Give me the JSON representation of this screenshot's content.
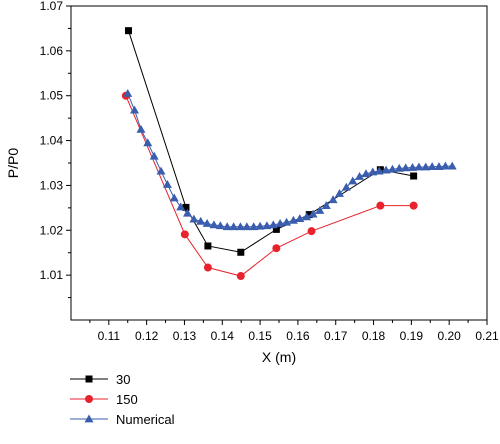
{
  "chart_data": {
    "type": "line",
    "xlabel": "X (m)",
    "ylabel": "P/P0",
    "xlim": [
      0.1,
      0.21
    ],
    "ylim": [
      1.0,
      1.07
    ],
    "x_ticks": [
      "0.11",
      "0.12",
      "0.13",
      "0.14",
      "0.15",
      "0.16",
      "0.17",
      "0.18",
      "0.19",
      "0.20",
      "0.21"
    ],
    "y_ticks": [
      "1.01",
      "1.02",
      "1.03",
      "1.04",
      "1.05",
      "1.06",
      "1.07"
    ],
    "legend_position": "bottom-left",
    "grid": false,
    "series": [
      {
        "name": "30",
        "color": "#000000",
        "marker": "square",
        "x": [
          0.1152,
          0.1304,
          0.1362,
          0.1449,
          0.1543,
          0.163,
          0.1818,
          0.1906
        ],
        "y": [
          1.0645,
          1.0251,
          1.0165,
          1.0151,
          1.0202,
          1.0235,
          1.0335,
          1.0321
        ]
      },
      {
        "name": "150",
        "color": "#e8232d",
        "marker": "circle",
        "x": [
          0.1145,
          0.1301,
          0.1362,
          0.1449,
          0.1543,
          0.1636,
          0.1818,
          0.1906
        ],
        "y": [
          1.05,
          1.0191,
          1.0117,
          1.0098,
          1.016,
          1.0198,
          1.0255,
          1.0255
        ]
      },
      {
        "name": "Numerical",
        "color": "#3a5dae",
        "marker": "triangle",
        "x": [
          0.115,
          0.1168,
          0.1185,
          0.1203,
          0.122,
          0.1238,
          0.1255,
          0.1273,
          0.129,
          0.1308,
          0.1325,
          0.1343,
          0.136,
          0.1378,
          0.1395,
          0.1413,
          0.143,
          0.1448,
          0.1465,
          0.1483,
          0.15,
          0.1518,
          0.1535,
          0.1553,
          0.157,
          0.1588,
          0.1605,
          0.1623,
          0.164,
          0.1658,
          0.1675,
          0.1693,
          0.171,
          0.1728,
          0.1745,
          0.1763,
          0.178,
          0.1798,
          0.1815,
          0.1833,
          0.185,
          0.1868,
          0.1885,
          0.1903,
          0.192,
          0.1938,
          0.1955,
          0.1973,
          0.199,
          0.2008
        ],
        "y": [
          1.0505,
          1.0468,
          1.0425,
          1.0395,
          1.0365,
          1.0332,
          1.0302,
          1.0272,
          1.0252,
          1.0238,
          1.0225,
          1.022,
          1.0215,
          1.0212,
          1.021,
          1.0208,
          1.0208,
          1.0208,
          1.0208,
          1.0208,
          1.0209,
          1.021,
          1.0212,
          1.0215,
          1.0218,
          1.0222,
          1.0226,
          1.023,
          1.0236,
          1.0244,
          1.0255,
          1.0268,
          1.0282,
          1.0296,
          1.031,
          1.032,
          1.0326,
          1.033,
          1.0332,
          1.0334,
          1.0336,
          1.0338,
          1.0339,
          1.034,
          1.0341,
          1.0341,
          1.0342,
          1.0342,
          1.0343,
          1.0343
        ]
      }
    ]
  }
}
